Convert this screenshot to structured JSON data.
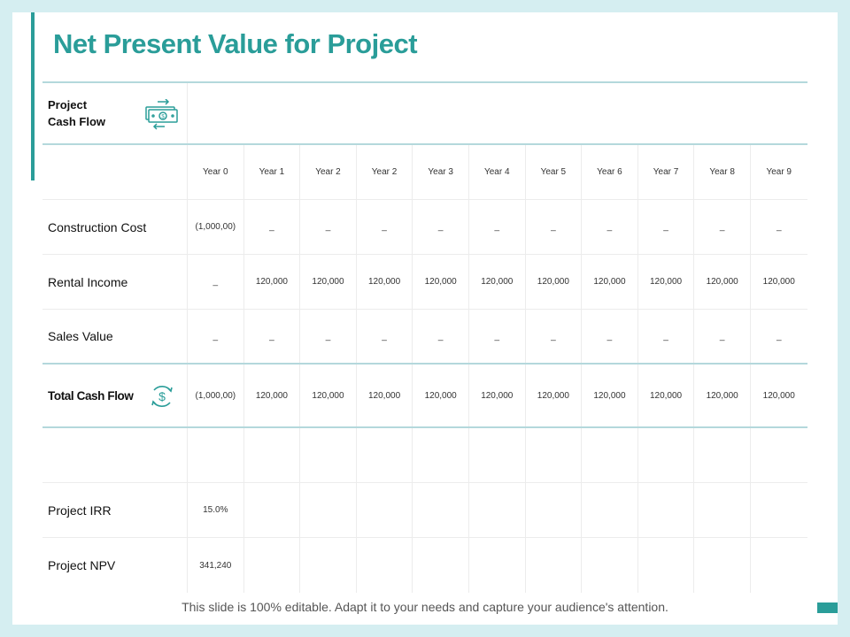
{
  "title": "Net Present Value for Project",
  "header": {
    "label_line1": "Project",
    "label_line2": "Cash Flow"
  },
  "years": [
    "Year 0",
    "Year 1",
    "Year 2",
    "Year 2",
    "Year 3",
    "Year 4",
    "Year 5",
    "Year 6",
    "Year 7",
    "Year 8",
    "Year 9"
  ],
  "rows": [
    {
      "label": "Construction Cost",
      "values": [
        "(1,000,00)",
        "_",
        "_",
        "_",
        "_",
        "_",
        "_",
        "_",
        "_",
        "_",
        "_"
      ]
    },
    {
      "label": "Rental Income",
      "values": [
        "_",
        "120,000",
        "120,000",
        "120,000",
        "120,000",
        "120,000",
        "120,000",
        "120,000",
        "120,000",
        "120,000",
        "120,000"
      ]
    },
    {
      "label": "Sales Value",
      "values": [
        "_",
        "_",
        "_",
        "_",
        "_",
        "_",
        "_",
        "_",
        "_",
        "_",
        "_"
      ]
    }
  ],
  "total": {
    "label": "Total Cash Flow",
    "values": [
      "(1,000,00)",
      "120,000",
      "120,000",
      "120,000",
      "120,000",
      "120,000",
      "120,000",
      "120,000",
      "120,000",
      "120,000",
      "120,000"
    ]
  },
  "irr": {
    "label": "Project IRR",
    "value": "15.0%"
  },
  "npv": {
    "label": "Project NPV",
    "value": "341,240"
  },
  "footer": "This slide is 100% editable. Adapt it to your needs and capture your audience's attention.",
  "colors": {
    "accent": "#2a9d99",
    "background": "#d5eef1",
    "rule": "#b4d8dc"
  },
  "icons": {
    "header": "money-exchange-icon",
    "total": "dollar-cycle-icon"
  }
}
